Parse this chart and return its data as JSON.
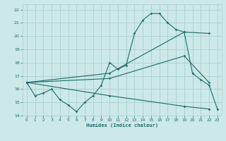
{
  "xlabel": "Humidex (Indice chaleur)",
  "bg_color": "#cce8e8",
  "grid_color": "#aacfcf",
  "line_color": "#1a6b6b",
  "xlim": [
    -0.5,
    23.5
  ],
  "ylim": [
    14,
    22.4
  ],
  "xticks": [
    0,
    1,
    2,
    3,
    4,
    5,
    6,
    7,
    8,
    9,
    10,
    11,
    12,
    13,
    14,
    15,
    16,
    17,
    18,
    19,
    20,
    21,
    22,
    23
  ],
  "yticks": [
    14,
    15,
    16,
    17,
    18,
    19,
    20,
    21,
    22
  ],
  "line1_x": [
    0,
    1,
    2,
    3,
    4,
    5,
    6,
    7,
    8,
    9,
    10,
    11,
    12,
    13,
    14,
    15,
    16,
    17,
    18,
    19,
    20,
    21,
    22,
    23
  ],
  "line1_y": [
    16.5,
    15.5,
    15.7,
    16.0,
    15.2,
    14.8,
    14.3,
    15.0,
    15.5,
    16.3,
    18.0,
    17.5,
    17.8,
    20.2,
    21.2,
    21.7,
    21.7,
    21.0,
    20.5,
    20.3,
    17.2,
    16.7,
    16.3,
    14.5
  ],
  "line2_x": [
    0,
    10,
    19,
    22
  ],
  "line2_y": [
    16.5,
    16.8,
    18.5,
    16.5
  ],
  "line3_x": [
    0,
    10,
    19,
    22
  ],
  "line3_y": [
    16.5,
    17.2,
    20.3,
    20.2
  ],
  "line4_x": [
    0,
    10,
    19,
    22
  ],
  "line4_y": [
    16.5,
    15.5,
    14.7,
    14.5
  ]
}
